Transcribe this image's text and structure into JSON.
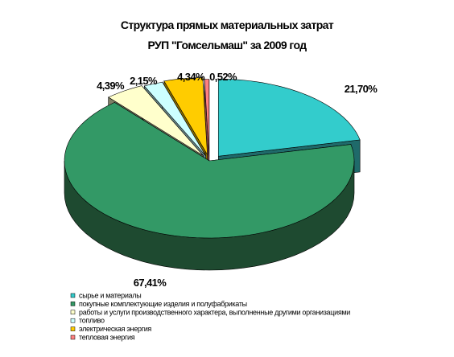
{
  "chart_data": {
    "type": "pie",
    "title_line1": "Структура прямых материальных затрат",
    "title_line2": "РУП \"Гомсельмаш\" за 2009 год",
    "series": [
      {
        "name": "сырье и материалы",
        "value": 21.7,
        "label": "21,70%",
        "color": "#33CCCC",
        "side": "#1F6A6A"
      },
      {
        "name": "покупные комплектующие изделия и полуфабрикаты",
        "value": 67.41,
        "label": "67,41%",
        "color": "#339966",
        "side": "#1E4A30"
      },
      {
        "name": "работы и услуги производственного характера, выполненные другими организациями",
        "value": 4.39,
        "label": "4,39%",
        "color": "#FFFFCC",
        "side": "#7F7F66"
      },
      {
        "name": "топливо",
        "value": 2.15,
        "label": "2,15%",
        "color": "#CCFFFF",
        "side": "#6A8A8A"
      },
      {
        "name": "электрическая энергия",
        "value": 4.34,
        "label": "4,34%",
        "color": "#FFCC00",
        "side": "#8A6E00"
      },
      {
        "name": "тепловая энергия",
        "value": 0.52,
        "label": "0,52%",
        "color": "#FF8080",
        "side": "#8A4545"
      }
    ],
    "legend_position": "bottom-left"
  }
}
